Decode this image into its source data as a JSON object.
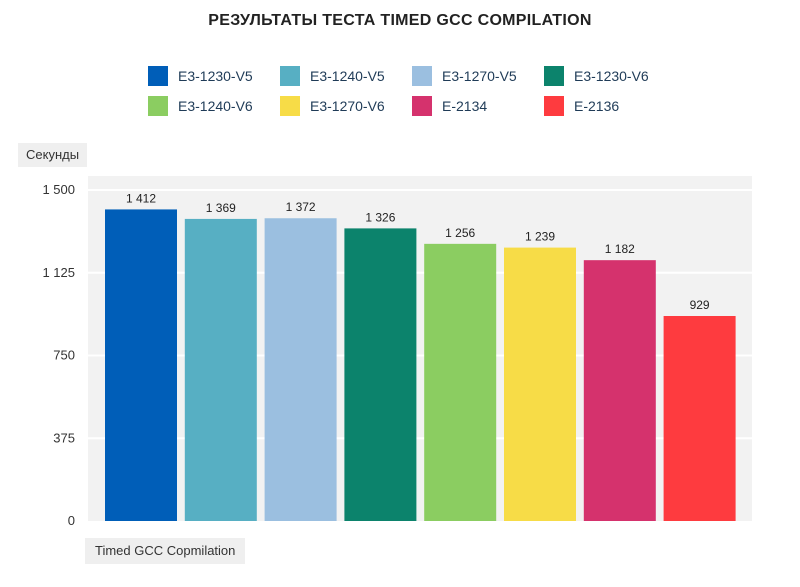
{
  "chart_data": {
    "type": "bar",
    "title": "РЕЗУЛЬТАТЫ ТЕСТА TIMED GCC COMPILATION",
    "ylabel": "Секунды",
    "category_label": "Timed GCC Copmilation",
    "ylim": [
      0,
      1500
    ],
    "yticks": [
      0,
      375,
      750,
      1125,
      1500
    ],
    "ytick_labels": [
      "0",
      "375",
      "750",
      "1 125",
      "1 500"
    ],
    "grid": true,
    "legend_position": "top",
    "series": [
      {
        "name": "E3-1230-V5",
        "value": 1412,
        "label": "1 412",
        "color": "#005eb8"
      },
      {
        "name": "E3-1240-V5",
        "value": 1369,
        "label": "1 369",
        "color": "#57afc3"
      },
      {
        "name": "E3-1270-V5",
        "value": 1372,
        "label": "1 372",
        "color": "#9bbfe0"
      },
      {
        "name": "E3-1230-V6",
        "value": 1326,
        "label": "1 326",
        "color": "#0c836c"
      },
      {
        "name": "E3-1240-V6",
        "value": 1256,
        "label": "1 256",
        "color": "#8bcd61"
      },
      {
        "name": "E3-1270-V6",
        "value": 1239,
        "label": "1 239",
        "color": "#f7dc47"
      },
      {
        "name": "E-2134",
        "value": 1182,
        "label": "1 182",
        "color": "#d5326d"
      },
      {
        "name": "E-2136",
        "value": 929,
        "label": "929",
        "color": "#fe3b3f"
      }
    ]
  }
}
